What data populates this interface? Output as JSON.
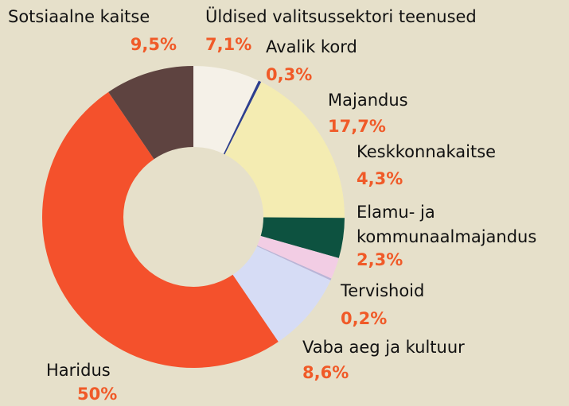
{
  "chart_data": {
    "type": "donut",
    "categories": [
      "Üldised valitsussektori teenused",
      "Avalik kord",
      "Majandus",
      "Keskkonnakaitse",
      "Elamu- ja\nkommunaalmajandus",
      "Tervishoid",
      "Vaba aeg ja kultuur",
      "Haridus",
      "Sotsiaalne kaitse"
    ],
    "values": [
      7.1,
      0.3,
      17.7,
      4.3,
      2.3,
      0.2,
      8.6,
      50,
      9.5
    ],
    "value_labels": [
      "7,1%",
      "0,3%",
      "17,7%",
      "4,3%",
      "2,3%",
      "0,2%",
      "8,6%",
      "50%",
      "9,5%"
    ],
    "colors": [
      "#f5f1e8",
      "#2e3f8f",
      "#f4ecb2",
      "#0d5240",
      "#f2cde4",
      "#b9b4d8",
      "#d6dcf5",
      "#f4512c",
      "#5e4340"
    ]
  }
}
